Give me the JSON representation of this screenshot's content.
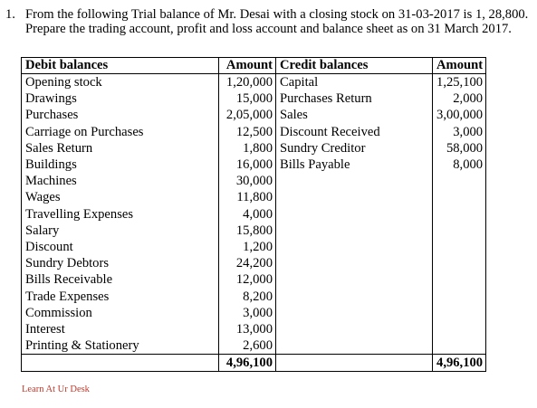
{
  "question": {
    "number": "1.",
    "text": "From the following Trial balance of Mr. Desai with a closing stock on 31-03-2017 is 1, 28,800. Prepare the trading account, profit and loss account and balance sheet as on 31 March 2017."
  },
  "table": {
    "headers": {
      "debit_label": "Debit balances",
      "debit_amount": "Amount",
      "credit_label": "Credit balances",
      "credit_amount": "Amount"
    },
    "rows": [
      {
        "debit": "Opening stock",
        "debit_amount": "1,20,000",
        "credit": "Capital",
        "credit_amount": "1,25,100"
      },
      {
        "debit": "Drawings",
        "debit_amount": "15,000",
        "credit": "Purchases Return",
        "credit_amount": "2,000"
      },
      {
        "debit": "Purchases",
        "debit_amount": "2,05,000",
        "credit": "Sales",
        "credit_amount": "3,00,000"
      },
      {
        "debit": "Carriage on Purchases",
        "debit_amount": "12,500",
        "credit": "Discount Received",
        "credit_amount": "3,000"
      },
      {
        "debit": "Sales Return",
        "debit_amount": "1,800",
        "credit": "Sundry Creditor",
        "credit_amount": "58,000"
      },
      {
        "debit": "Buildings",
        "debit_amount": "16,000",
        "credit": "Bills Payable",
        "credit_amount": "8,000"
      },
      {
        "debit": "Machines",
        "debit_amount": "30,000",
        "credit": "",
        "credit_amount": ""
      },
      {
        "debit": "Wages",
        "debit_amount": "11,800",
        "credit": "",
        "credit_amount": ""
      },
      {
        "debit": "Travelling Expenses",
        "debit_amount": "4,000",
        "credit": "",
        "credit_amount": ""
      },
      {
        "debit": "Salary",
        "debit_amount": "15,800",
        "credit": "",
        "credit_amount": ""
      },
      {
        "debit": "Discount",
        "debit_amount": "1,200",
        "credit": "",
        "credit_amount": ""
      },
      {
        "debit": "Sundry Debtors",
        "debit_amount": "24,200",
        "credit": "",
        "credit_amount": ""
      },
      {
        "debit": "Bills Receivable",
        "debit_amount": "12,000",
        "credit": "",
        "credit_amount": ""
      },
      {
        "debit": "Trade Expenses",
        "debit_amount": "8,200",
        "credit": "",
        "credit_amount": ""
      },
      {
        "debit": "Commission",
        "debit_amount": "3,000",
        "credit": "",
        "credit_amount": ""
      },
      {
        "debit": "Interest",
        "debit_amount": "13,000",
        "credit": "",
        "credit_amount": ""
      },
      {
        "debit": "Printing & Stationery",
        "debit_amount": "2,600",
        "credit": "",
        "credit_amount": ""
      }
    ],
    "totals": {
      "debit": "4,96,100",
      "credit": "4,96,100"
    }
  },
  "watermark": "Learn At Ur Desk"
}
